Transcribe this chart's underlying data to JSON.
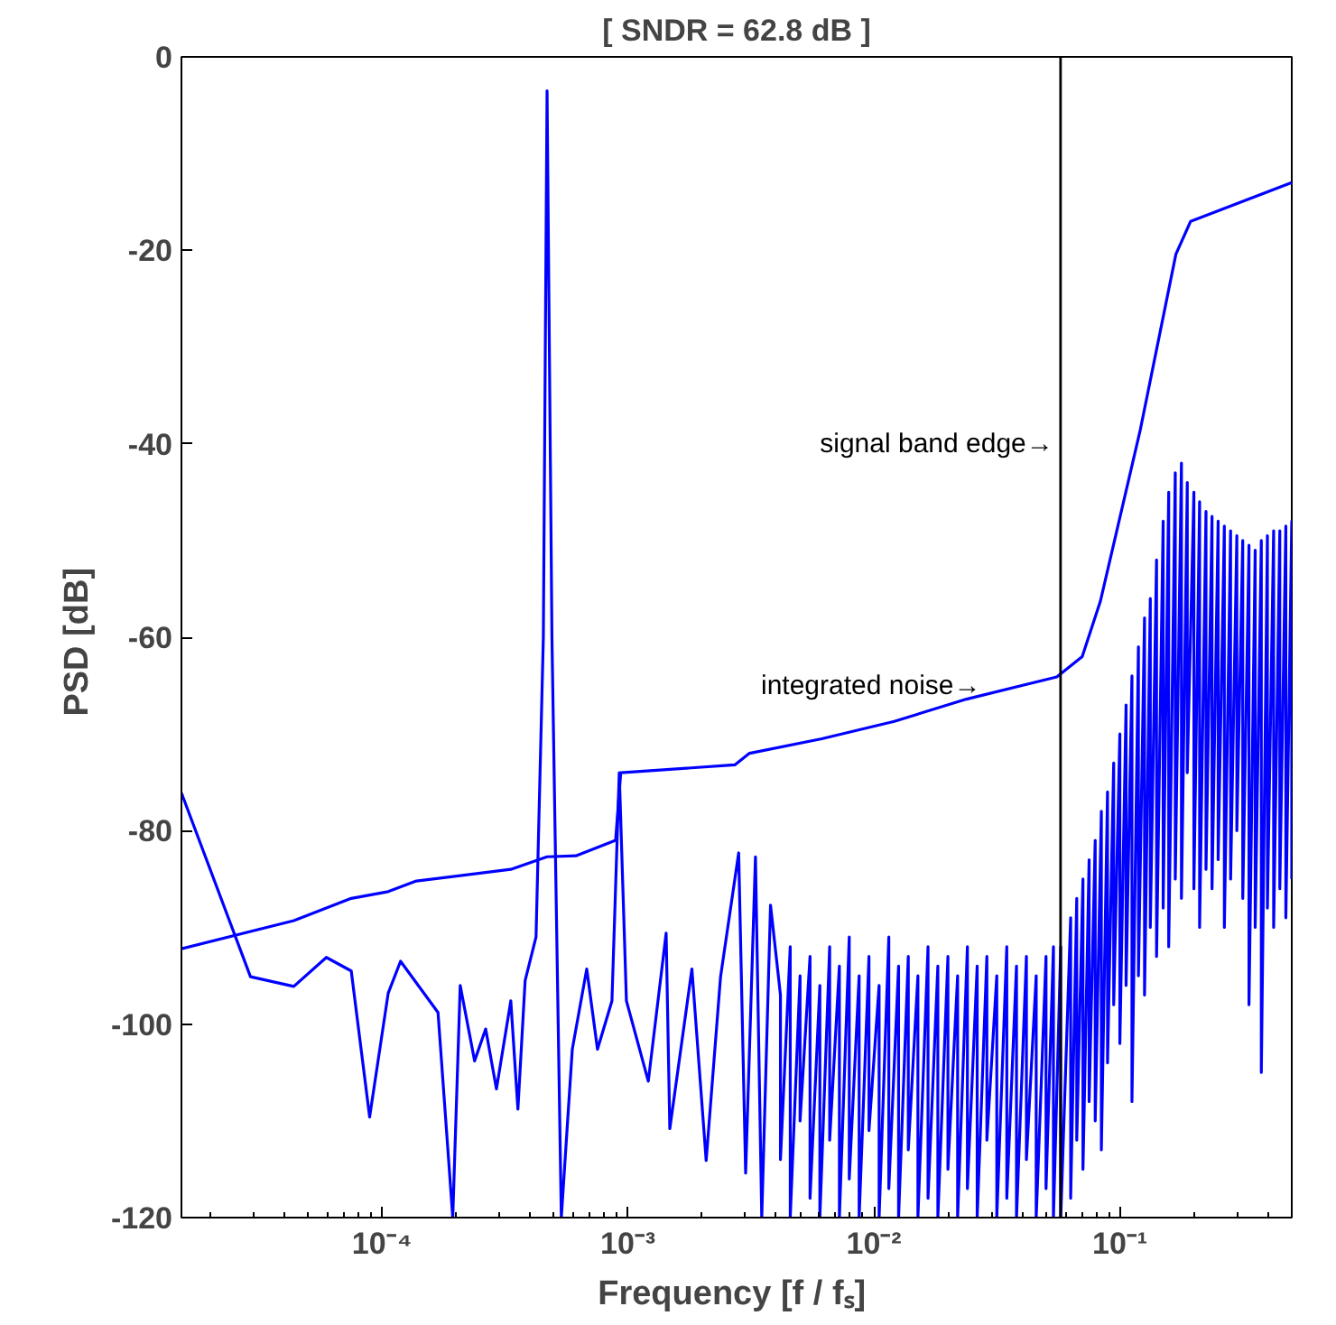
{
  "chart_data": {
    "type": "line",
    "title": "[ SNDR = 62.8 dB ]",
    "xlabel": "Frequency  [f / fₛ]",
    "ylabel": "PSD  [dB]",
    "log": "x",
    "grid": false,
    "marker": "none",
    "line_style": "solid",
    "xlim": [
      1.53e-05,
      0.5
    ],
    "ylim": [
      -120,
      0
    ],
    "xticks": [
      {
        "value": 0.0001,
        "label": "10⁻⁴"
      },
      {
        "value": 0.001,
        "label": "10⁻³"
      },
      {
        "value": 0.01,
        "label": "10⁻²"
      },
      {
        "value": 0.1,
        "label": "10⁻¹"
      }
    ],
    "yticks": [
      -120,
      -100,
      -80,
      -60,
      -40,
      -20,
      0
    ],
    "ref_lines": [
      {
        "axis": "x",
        "value": 0.0574,
        "color": "#000000"
      }
    ],
    "annotations": [
      {
        "text": "signal band edge→",
        "x": 0.0536,
        "y": -40
      },
      {
        "text": "integrated noise→",
        "x": 0.0272,
        "y": -65
      }
    ],
    "series": [
      {
        "color": "#0000ff",
        "x": [
          1.53e-05,
          2.92e-05,
          4.38e-05,
          5.94e-05,
          7.5e-05,
          8.91e-05,
          0.000106,
          0.000119,
          0.000169,
          0.000194,
          0.000208,
          0.000238,
          0.000264,
          0.000292,
          0.000334,
          0.000357,
          0.000382,
          0.000423,
          0.000453,
          0.000469,
          0.000491,
          0.000536,
          0.000594,
          0.00068,
          0.000752,
          0.000861,
          0.000922,
          0.000986,
          0.00121,
          0.00143,
          0.00148,
          0.00182,
          0.00208,
          0.00238,
          0.00282,
          0.00301,
          0.0033,
          0.0035,
          0.0038,
          0.00417,
          0.00417,
          0.00457,
          0.00457,
          0.00501,
          0.00501,
          0.0055,
          0.0055,
          0.00603,
          0.00603,
          0.00661,
          0.00661,
          0.00724,
          0.00724,
          0.00794,
          0.00794,
          0.00871,
          0.00871,
          0.00955,
          0.00955,
          0.0105,
          0.0105,
          0.0115,
          0.0115,
          0.0126,
          0.0126,
          0.0138,
          0.0138,
          0.0151,
          0.0151,
          0.0166,
          0.0166,
          0.0182,
          0.0182,
          0.02,
          0.02,
          0.0219,
          0.0219,
          0.024,
          0.024,
          0.0263,
          0.0263,
          0.0288,
          0.0288,
          0.0316,
          0.0316,
          0.0347,
          0.0347,
          0.038,
          0.038,
          0.0417,
          0.0417,
          0.0457,
          0.0457,
          0.0501,
          0.0501,
          0.0537,
          0.0537,
          0.0575,
          0.0575,
          0.0631,
          0.0631,
          0.0668,
          0.0668,
          0.0708,
          0.0708,
          0.075,
          0.075,
          0.0794,
          0.0794,
          0.0841,
          0.0841,
          0.0891,
          0.0891,
          0.0944,
          0.0944,
          0.1,
          0.1,
          0.106,
          0.106,
          0.112,
          0.112,
          0.119,
          0.119,
          0.126,
          0.126,
          0.133,
          0.133,
          0.141,
          0.141,
          0.15,
          0.15,
          0.158,
          0.158,
          0.168,
          0.168,
          0.178,
          0.178,
          0.188,
          0.188,
          0.2,
          0.2,
          0.211,
          0.211,
          0.224,
          0.224,
          0.237,
          0.237,
          0.251,
          0.251,
          0.266,
          0.266,
          0.282,
          0.282,
          0.299,
          0.299,
          0.316,
          0.316,
          0.335,
          0.335,
          0.355,
          0.355,
          0.376,
          0.376,
          0.398,
          0.398,
          0.422,
          0.422,
          0.447,
          0.447,
          0.473,
          0.473,
          0.5,
          0.5
        ],
        "values": [
          -76.1,
          -95.1,
          -96.1,
          -93.1,
          -94.5,
          -109.6,
          -96.8,
          -93.5,
          -98.8,
          -120,
          -96,
          -103.8,
          -100.5,
          -106.7,
          -97.6,
          -108.8,
          -95.5,
          -91,
          -60,
          -3.5,
          -60,
          -120,
          -102.6,
          -94.3,
          -102.6,
          -97.6,
          -74,
          -97.6,
          -105.9,
          -90.6,
          -110.8,
          -94.3,
          -114.1,
          -95.1,
          -82.3,
          -115.4,
          -82.7,
          -120,
          -87.7,
          -97,
          -114,
          -92,
          -120,
          -95,
          -110,
          -93,
          -118,
          -96,
          -120,
          -92,
          -112,
          -94,
          -120,
          -91,
          -116,
          -95,
          -120,
          -93,
          -111,
          -96,
          -120,
          -91,
          -117,
          -94,
          -120,
          -93,
          -113,
          -95,
          -120,
          -92,
          -118,
          -94,
          -120,
          -93,
          -115,
          -95,
          -120,
          -92,
          -117,
          -94,
          -120,
          -93,
          -112,
          -95,
          -120,
          -92,
          -118,
          -94,
          -120,
          -93,
          -114,
          -95,
          -120,
          -93,
          -117,
          -92,
          -120,
          -92,
          -120,
          -89,
          -118,
          -87,
          -112,
          -85,
          -115,
          -83,
          -108,
          -81,
          -110,
          -78,
          -113,
          -76,
          -104,
          -73,
          -98,
          -70,
          -102,
          -67,
          -96,
          -64,
          -108,
          -61,
          -95,
          -58,
          -97,
          -56,
          -90,
          -52,
          -93,
          -48,
          -88,
          -45,
          -92,
          -43,
          -85,
          -42,
          -87,
          -44,
          -74,
          -45,
          -86,
          -46,
          -90,
          -47,
          -84,
          -47.5,
          -86,
          -48,
          -83,
          -48.5,
          -90,
          -49,
          -85,
          -49.5,
          -80,
          -50,
          -87,
          -50.5,
          -98,
          -51,
          -90,
          -50,
          -105,
          -49.5,
          -88,
          -49,
          -90,
          -49,
          -86,
          -48.5,
          -89,
          -48,
          -85
        ]
      },
      {
        "color": "#0000ff",
        "x": [
          1.53e-05,
          4.38e-05,
          7.5e-05,
          0.000106,
          0.000138,
          0.000334,
          0.000469,
          0.000614,
          0.000891,
          0.000935,
          0.00272,
          0.00312,
          0.00614,
          0.0121,
          0.0238,
          0.0554,
          0.0703,
          0.0833,
          0.121,
          0.169,
          0.194,
          0.5
        ],
        "values": [
          -92.2,
          -89.3,
          -87,
          -86.3,
          -85.2,
          -84,
          -82.7,
          -82.6,
          -81,
          -74,
          -73.2,
          -72,
          -70.5,
          -68.7,
          -66.4,
          -64.1,
          -62,
          -56.3,
          -38.6,
          -20.4,
          -17,
          -13
        ]
      }
    ]
  }
}
